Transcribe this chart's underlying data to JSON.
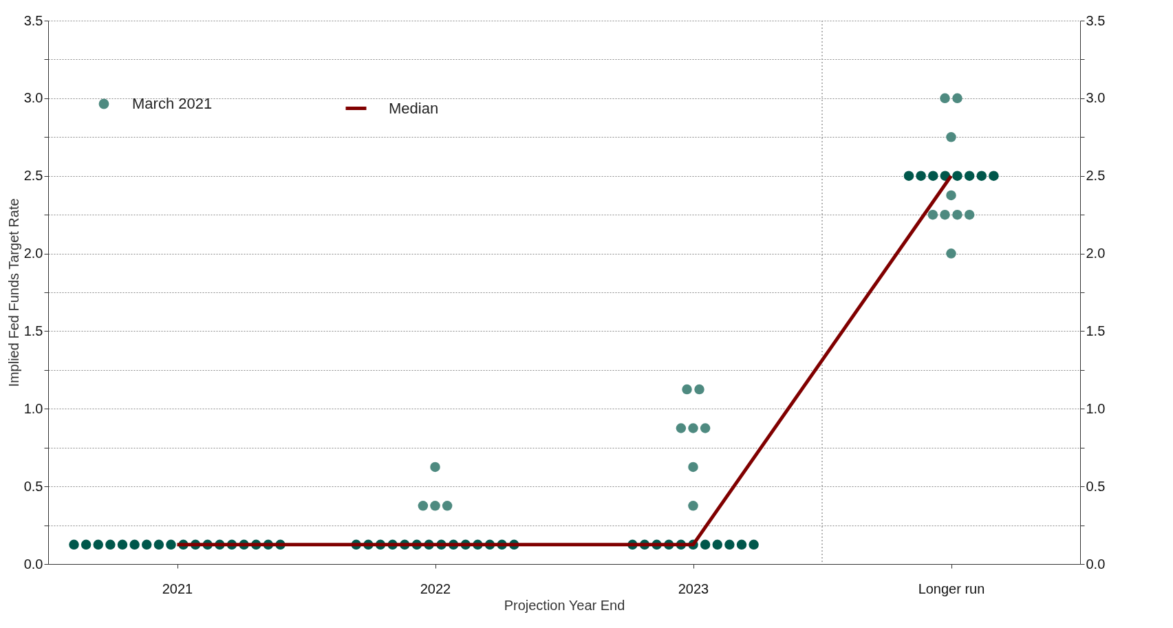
{
  "chart_data": {
    "type": "scatter",
    "xlabel": "Projection Year End",
    "ylabel": "Implied Fed Funds Target Rate",
    "xlim": [
      2020.5,
      2024.5
    ],
    "xticks": [
      2021,
      2022,
      2023,
      {
        "value": 2024,
        "label": "Longer run"
      }
    ],
    "ylim": [
      0,
      3.5
    ],
    "yticks": [
      {
        "value": 0,
        "label": "0.0"
      },
      {
        "value": 0.25,
        "label": null
      },
      0.5,
      {
        "value": 0.75,
        "label": null
      },
      {
        "value": 1,
        "label": "1.0"
      },
      {
        "value": 1.25,
        "label": null
      },
      1.5,
      {
        "value": 1.75,
        "label": null
      },
      {
        "value": 2,
        "label": "2.0"
      },
      {
        "value": 2.25,
        "label": null
      },
      2.5,
      {
        "value": 2.75,
        "label": null
      },
      {
        "value": 3,
        "label": "3.0"
      },
      {
        "value": 3.25,
        "label": null
      },
      3.5
    ],
    "y2lim": [
      0,
      3.5
    ],
    "y2ticks": [
      {
        "value": 0,
        "label": "0.0"
      },
      {
        "value": 0.25,
        "label": null
      },
      0.5,
      {
        "value": 0.75,
        "label": null
      },
      {
        "value": 1,
        "label": "1.0"
      },
      {
        "value": 1.25,
        "label": null
      },
      1.5,
      {
        "value": 1.75,
        "label": null
      },
      {
        "value": 2,
        "label": "2.0"
      },
      {
        "value": 2.25,
        "label": null
      },
      2.5,
      {
        "value": 2.75,
        "label": null
      },
      {
        "value": 3,
        "label": "3.0"
      },
      {
        "value": 3.25,
        "label": null
      },
      3.5
    ],
    "grid": "y",
    "legend": "top left",
    "ref_lines": [
      {
        "axis": "x",
        "value": 2023.5,
        "color": "#999999",
        "line_style": "dotted"
      }
    ],
    "series": [
      {
        "marker": "circle",
        "color": "#00574b",
        "x": [
          2020.6,
          2020.647,
          2020.694,
          2020.741,
          2020.788,
          2020.835,
          2020.882,
          2020.929,
          2020.976,
          2021.024,
          2021.071,
          2021.118,
          2021.165,
          2021.212,
          2021.259,
          2021.306,
          2021.353,
          2021.4,
          2021.694,
          2021.741,
          2021.788,
          2021.835,
          2021.882,
          2021.929,
          2021.976,
          2022.024,
          2022.071,
          2022.118,
          2022.165,
          2022.212,
          2022.259,
          2022.306,
          2022.765,
          2022.812,
          2022.859,
          2022.906,
          2022.953,
          2023.0,
          2023.047,
          2023.094,
          2023.141,
          2023.188,
          2023.235,
          2023.836,
          2023.883,
          2023.93,
          2023.977,
          2024.024,
          2024.071,
          2024.118,
          2024.165
        ],
        "values": [
          0.125,
          0.125,
          0.125,
          0.125,
          0.125,
          0.125,
          0.125,
          0.125,
          0.125,
          0.125,
          0.125,
          0.125,
          0.125,
          0.125,
          0.125,
          0.125,
          0.125,
          0.125,
          0.125,
          0.125,
          0.125,
          0.125,
          0.125,
          0.125,
          0.125,
          0.125,
          0.125,
          0.125,
          0.125,
          0.125,
          0.125,
          0.125,
          0.125,
          0.125,
          0.125,
          0.125,
          0.125,
          0.125,
          0.125,
          0.125,
          0.125,
          0.125,
          0.125,
          2.5,
          2.5,
          2.5,
          2.5,
          2.5,
          2.5,
          2.5,
          2.5
        ]
      },
      {
        "marker": "circle",
        "name": "March 2021",
        "color": "#4e8a80",
        "x": [
          2021.953,
          2022.0,
          2022.047,
          2022.0,
          2023.0,
          2023.0,
          2022.953,
          2023.0,
          2023.047,
          2022.976,
          2023.024,
          2023.976,
          2024.024,
          2024.0,
          2024.0,
          2023.929,
          2023.976,
          2024.024,
          2024.071,
          2024.0
        ],
        "values": [
          0.375,
          0.375,
          0.375,
          0.625,
          0.375,
          0.625,
          0.875,
          0.875,
          0.875,
          1.125,
          1.125,
          3.0,
          3.0,
          2.75,
          2.375,
          2.25,
          2.25,
          2.25,
          2.25,
          2.0
        ]
      },
      {
        "type": "line",
        "name": "Median",
        "color": "#800000",
        "x": [
          2021,
          2022,
          2023,
          2024
        ],
        "values": [
          0.125,
          0.125,
          0.125,
          2.5
        ]
      }
    ]
  }
}
